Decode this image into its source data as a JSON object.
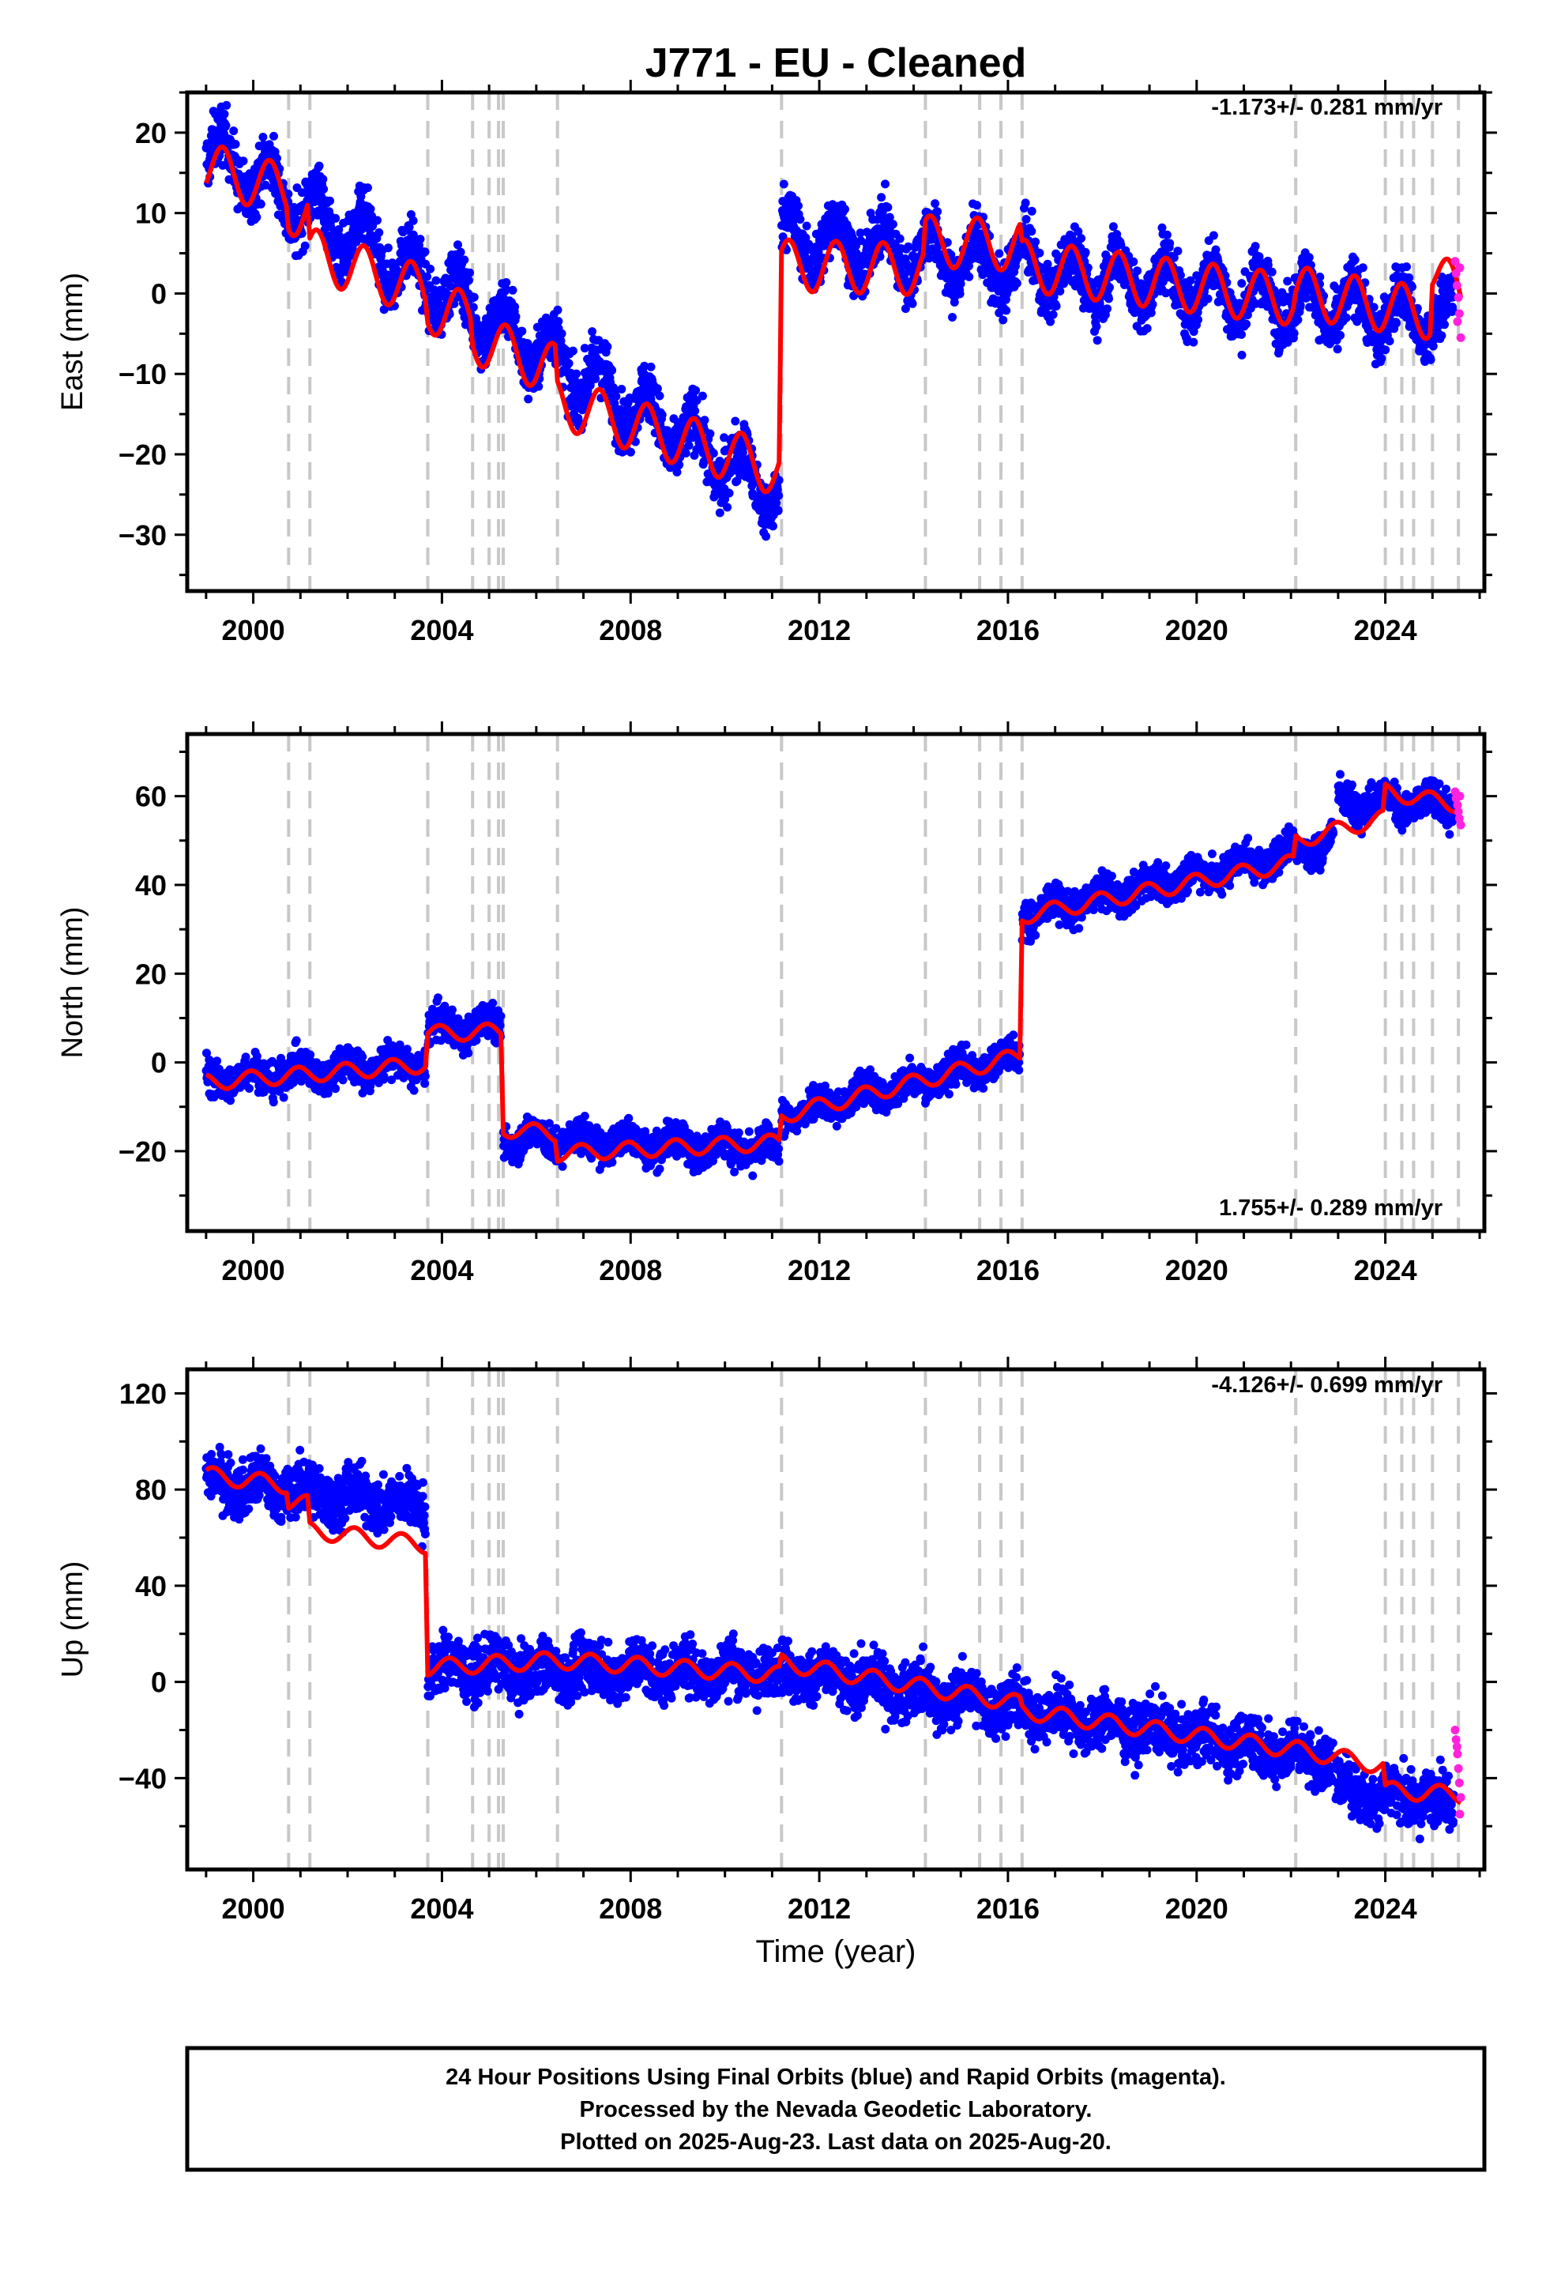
{
  "title": "J771  - EU - Cleaned",
  "xlabel": "Time (year)",
  "footer": [
    "24 Hour Positions Using Final Orbits (blue) and Rapid Orbits (magenta).",
    "Processed by the Nevada Geodetic Laboratory.",
    "Plotted on 2025-Aug-23. Last data on 2025-Aug-20."
  ],
  "colors": {
    "final": "#0000ff",
    "rapid": "#ff22dd",
    "model": "#ff0000",
    "event_line": "#c8c8c8"
  },
  "chart_data": [
    {
      "type": "scatter",
      "ylabel": "East (mm)",
      "rate_label": "-1.173+/- 0.281 mm/yr",
      "xlim": [
        1998.6,
        2026.1
      ],
      "ylim": [
        -37,
        25
      ],
      "xticks": [
        2000,
        2004,
        2008,
        2012,
        2016,
        2020,
        2024
      ],
      "yticks": [
        20,
        10,
        0,
        -10,
        -20,
        -30
      ],
      "event_lines": [
        2000.75,
        2001.2,
        2003.7,
        2004.65,
        2005.0,
        2005.2,
        2005.3,
        2006.45,
        2011.2,
        2014.25,
        2015.4,
        2015.85,
        2016.3,
        2022.1,
        2024.0,
        2024.35,
        2024.6,
        2025.0,
        2025.55
      ],
      "model": {
        "segments": [
          {
            "x0": 1999.0,
            "x1": 2000.7,
            "y0": 15.6,
            "y1": 12.8
          },
          {
            "x0": 2000.75,
            "x1": 2001.15,
            "y0": 10.5,
            "y1": 10.0
          },
          {
            "x0": 2001.2,
            "x1": 2003.65,
            "y0": 5.0,
            "y1": 0.2
          },
          {
            "x0": 2003.7,
            "x1": 2004.6,
            "y0": -1.8,
            "y1": -3.0
          },
          {
            "x0": 2004.65,
            "x1": 2006.4,
            "y0": -5.5,
            "y1": -9.5
          },
          {
            "x0": 2006.45,
            "x1": 2011.15,
            "y0": -13.5,
            "y1": -22.0
          },
          {
            "x0": 2011.2,
            "x1": 2014.2,
            "y0": 3.5,
            "y1": 3.0
          },
          {
            "x0": 2014.25,
            "x1": 2016.25,
            "y0": 6.5,
            "y1": 6.0
          },
          {
            "x0": 2016.3,
            "x1": 2022.05,
            "y0": 3.5,
            "y1": -0.8
          },
          {
            "x0": 2022.1,
            "x1": 2024.95,
            "y0": 0.2,
            "y1": -2.5
          },
          {
            "x0": 2025.0,
            "x1": 2025.6,
            "y0": 3.0,
            "y1": -0.5
          }
        ],
        "amplitude": 3.2,
        "phase": 0.9
      },
      "final_points": [
        {
          "x0": 1999.0,
          "x1": 2011.15,
          "y0": 18.0,
          "y1": -25.0
        },
        {
          "x0": 2011.2,
          "x1": 2025.45,
          "y0": 7.0,
          "y1": -3.5
        }
      ],
      "final_noise": 2.6,
      "rapid_points": [
        [
          2025.48,
          4.0
        ],
        [
          2025.5,
          2.5
        ],
        [
          2025.52,
          1.0
        ],
        [
          2025.55,
          -0.5
        ],
        [
          2025.57,
          -2.5
        ],
        [
          2025.6,
          -5.5
        ],
        [
          2025.58,
          3.2
        ],
        [
          2025.53,
          -3.5
        ]
      ]
    },
    {
      "type": "scatter",
      "ylabel": "North (mm)",
      "rate_label": "1.755+/- 0.289 mm/yr",
      "xlim": [
        1998.6,
        2026.1
      ],
      "ylim": [
        -38,
        74
      ],
      "xticks": [
        2000,
        2004,
        2008,
        2012,
        2016,
        2020,
        2024
      ],
      "yticks": [
        60,
        40,
        20,
        0,
        -20
      ],
      "event_lines": [
        2000.75,
        2001.2,
        2003.7,
        2004.65,
        2005.0,
        2005.2,
        2005.3,
        2006.45,
        2011.2,
        2014.25,
        2015.4,
        2015.85,
        2016.3,
        2022.1,
        2024.0,
        2024.35,
        2024.6,
        2025.0,
        2025.55
      ],
      "model": {
        "segments": [
          {
            "x0": 1999.0,
            "x1": 2003.65,
            "y0": -4.5,
            "y1": -0.5
          },
          {
            "x0": 2003.7,
            "x1": 2005.25,
            "y0": 6.5,
            "y1": 7.0
          },
          {
            "x0": 2005.3,
            "x1": 2006.4,
            "y0": -15.0,
            "y1": -16.0
          },
          {
            "x0": 2006.45,
            "x1": 2011.15,
            "y0": -20.5,
            "y1": -18.0
          },
          {
            "x0": 2011.2,
            "x1": 2016.25,
            "y0": -12.0,
            "y1": 1.5
          },
          {
            "x0": 2016.3,
            "x1": 2022.05,
            "y0": 33.0,
            "y1": 45.0
          },
          {
            "x0": 2022.1,
            "x1": 2023.95,
            "y0": 50.0,
            "y1": 55.0
          },
          {
            "x0": 2024.0,
            "x1": 2025.6,
            "y0": 61.0,
            "y1": 58.0
          }
        ],
        "amplitude": 1.8,
        "phase": 0.3
      },
      "final_points": [
        {
          "x0": 1999.0,
          "x1": 2003.65,
          "y0": -4.0,
          "y1": 0.0
        },
        {
          "x0": 2003.7,
          "x1": 2005.25,
          "y0": 7.5,
          "y1": 8.0
        },
        {
          "x0": 2005.3,
          "x1": 2011.15,
          "y0": -17.0,
          "y1": -19.5
        },
        {
          "x0": 2011.2,
          "x1": 2016.25,
          "y0": -12.0,
          "y1": 1.5
        },
        {
          "x0": 2016.3,
          "x1": 2022.9,
          "y0": 33.0,
          "y1": 49.5
        },
        {
          "x0": 2023.0,
          "x1": 2025.45,
          "y0": 59.5,
          "y1": 57.5
        }
      ],
      "final_noise": 2.8,
      "rapid_points": [
        [
          2025.48,
          61.0
        ],
        [
          2025.5,
          59.5
        ],
        [
          2025.53,
          58.0
        ],
        [
          2025.55,
          56.5
        ],
        [
          2025.57,
          55.0
        ],
        [
          2025.6,
          53.5
        ],
        [
          2025.58,
          60.0
        ]
      ]
    },
    {
      "type": "scatter",
      "ylabel": "Up (mm)",
      "rate_label": "-4.126+/- 0.699 mm/yr",
      "xlim": [
        1998.6,
        2026.1
      ],
      "ylim": [
        -78,
        130
      ],
      "xticks": [
        2000,
        2004,
        2008,
        2012,
        2016,
        2020,
        2024
      ],
      "yticks": [
        120,
        80,
        40,
        0,
        -40
      ],
      "event_lines": [
        2000.75,
        2001.2,
        2003.7,
        2004.65,
        2005.0,
        2005.2,
        2005.3,
        2006.45,
        2011.2,
        2014.25,
        2015.4,
        2015.85,
        2016.3,
        2022.1,
        2024.0,
        2024.35,
        2024.6,
        2025.0,
        2025.55
      ],
      "model": {
        "segments": [
          {
            "x0": 1999.0,
            "x1": 2000.7,
            "y0": 86.0,
            "y1": 82.0
          },
          {
            "x0": 2000.75,
            "x1": 2001.15,
            "y0": 75.0,
            "y1": 74.0
          },
          {
            "x0": 2001.2,
            "x1": 2003.65,
            "y0": 63.0,
            "y1": 57.0
          },
          {
            "x0": 2003.7,
            "x1": 2006.4,
            "y0": 6.0,
            "y1": 9.0
          },
          {
            "x0": 2006.45,
            "x1": 2011.15,
            "y0": 9.0,
            "y1": 3.0
          },
          {
            "x0": 2011.2,
            "x1": 2016.25,
            "y0": 8.0,
            "y1": -9.0
          },
          {
            "x0": 2016.3,
            "x1": 2022.05,
            "y0": -12.0,
            "y1": -28.0
          },
          {
            "x0": 2022.1,
            "x1": 2023.95,
            "y0": -28.0,
            "y1": -35.0
          },
          {
            "x0": 2024.0,
            "x1": 2025.6,
            "y0": -45.0,
            "y1": -47.0
          }
        ],
        "amplitude": 3.5,
        "phase": 0.1
      },
      "final_points": [
        {
          "x0": 1999.0,
          "x1": 2003.65,
          "y0": 84.0,
          "y1": 73.0
        },
        {
          "x0": 2003.7,
          "x1": 2011.15,
          "y0": 6.0,
          "y1": 4.0
        },
        {
          "x0": 2011.2,
          "x1": 2022.9,
          "y0": 5.0,
          "y1": -32.0
        },
        {
          "x0": 2022.95,
          "x1": 2025.45,
          "y0": -44.0,
          "y1": -50.0
        }
      ],
      "final_noise": 8.0,
      "rapid_points": [
        [
          2025.48,
          -20.0
        ],
        [
          2025.5,
          -24.0
        ],
        [
          2025.53,
          -30.0
        ],
        [
          2025.55,
          -36.0
        ],
        [
          2025.57,
          -42.0
        ],
        [
          2025.6,
          -48.0
        ],
        [
          2025.58,
          -55.0
        ],
        [
          2025.52,
          -27.0
        ]
      ]
    }
  ]
}
